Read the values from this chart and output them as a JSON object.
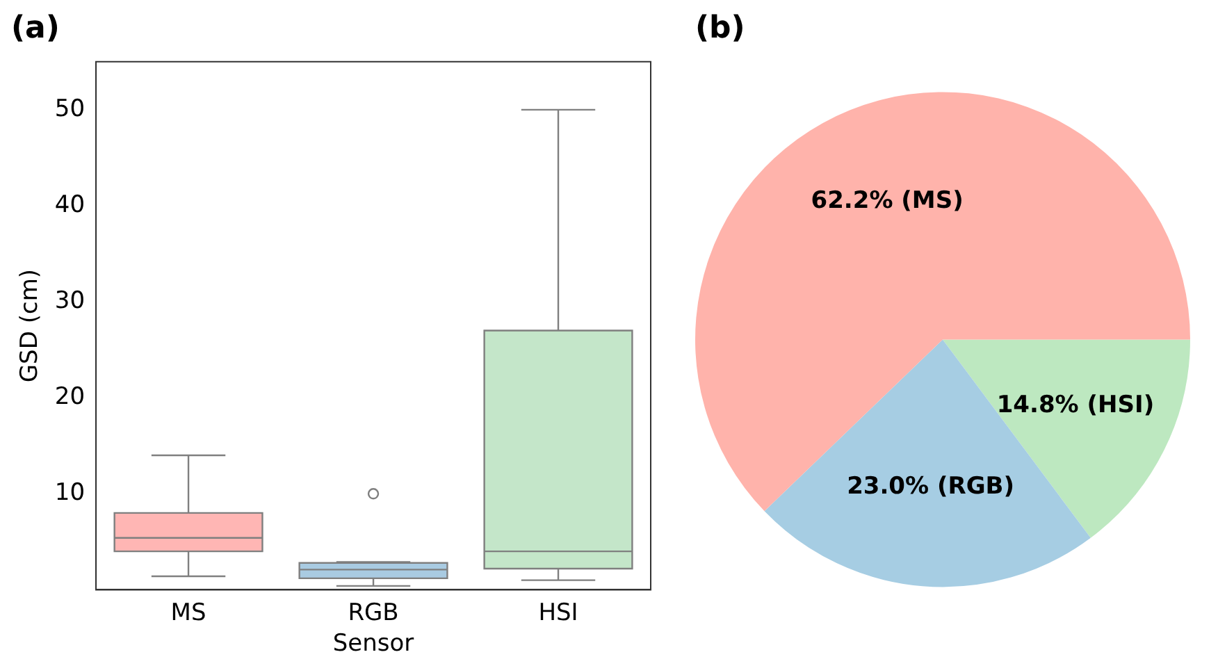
{
  "chart_data": [
    {
      "type": "box",
      "title": "(a)",
      "xlabel": "Sensor",
      "ylabel": "GSD (cm)",
      "categories": [
        "MS",
        "RGB",
        "HSI"
      ],
      "colors": [
        "#ffb6b4",
        "#a9cbe2",
        "#c4e6c9"
      ],
      "boxes": [
        {
          "low": 1.4,
          "q1": 4.0,
          "median": 5.4,
          "q3": 8.0,
          "high": 14
        },
        {
          "low": 0.4,
          "q1": 1.2,
          "median": 2.1,
          "q3": 2.8,
          "high": 2.9,
          "outliers": [
            10
          ]
        },
        {
          "low": 1.0,
          "q1": 2.2,
          "median": 4.0,
          "q3": 27,
          "high": 50
        }
      ],
      "ylim": [
        0,
        55
      ],
      "yticks": [
        10,
        20,
        30,
        40,
        50
      ],
      "grid": false
    },
    {
      "type": "pie",
      "title": "(b)",
      "categories": [
        "(MS)",
        "(RGB)",
        "(HSI)"
      ],
      "values": [
        62.2,
        23.0,
        14.8
      ],
      "colors": [
        "#ffb3ab",
        "#a6cde3",
        "#bde8c0"
      ],
      "value_labels": [
        "62.2%",
        "23.0%",
        "14.8%"
      ]
    }
  ]
}
